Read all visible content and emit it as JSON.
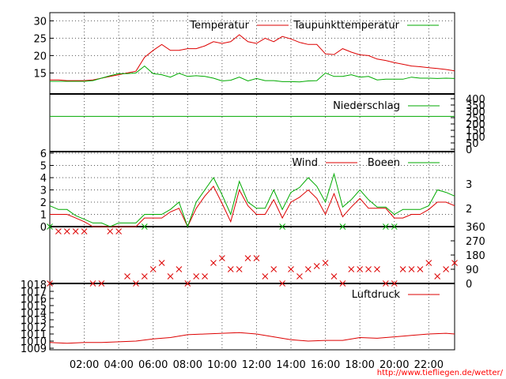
{
  "colors": {
    "red": "#dd0000",
    "green": "#00aa00",
    "grid": "#555555",
    "frame": "#000000"
  },
  "credit": "http://www.tiefliegen.de/wetter/",
  "chart_data": [
    {
      "type": "line",
      "name": "temperature-panel",
      "ylim": [
        11,
        31
      ],
      "yticks": [
        "15",
        "20",
        "25",
        "30"
      ],
      "ytick_values": [
        15,
        20,
        25,
        30
      ],
      "legend": [
        "Temperatur",
        "Taupunkttemperatur"
      ],
      "x": [
        0,
        0.5,
        1,
        1.5,
        2,
        2.5,
        3,
        3.5,
        4,
        4.5,
        5,
        5.5,
        6,
        6.5,
        7,
        7.5,
        8,
        8.5,
        9,
        9.5,
        10,
        10.5,
        11,
        11.5,
        12,
        12.5,
        13,
        13.5,
        14,
        14.5,
        15,
        15.5,
        16,
        16.5,
        17,
        17.5,
        18,
        18.5,
        19,
        19.5,
        20,
        20.5,
        21,
        21.5,
        22,
        22.5,
        23,
        23.5
      ],
      "series": [
        {
          "name": "Temperatur",
          "color": "red",
          "values": [
            13,
            13,
            12.8,
            12.8,
            12.8,
            13,
            13.5,
            14,
            14.5,
            15,
            15.5,
            19.5,
            21.5,
            23.2,
            21.5,
            21.5,
            22,
            22,
            22.8,
            24,
            23.5,
            24,
            26,
            24,
            23.5,
            25,
            24,
            25.5,
            24.8,
            23.8,
            23.2,
            23.2,
            20.5,
            20.3,
            22,
            21,
            20.2,
            20,
            19,
            18.6,
            18,
            17.5,
            17,
            16.8,
            16.5,
            16.3,
            16,
            15.6
          ]
        },
        {
          "name": "Taupunkttemperatur",
          "color": "green",
          "values": [
            12.6,
            12.6,
            12.6,
            12.6,
            12.6,
            12.8,
            13.5,
            14.2,
            14.8,
            14.8,
            15,
            17,
            14.8,
            14.5,
            13.8,
            14.9,
            14,
            14.2,
            14,
            13.5,
            12.7,
            12.9,
            13.8,
            12.7,
            13.4,
            12.8,
            12.8,
            12.5,
            12.5,
            12.4,
            12.7,
            12.8,
            15,
            14,
            14,
            14.5,
            13.8,
            14,
            13,
            13.2,
            13.2,
            13.2,
            13.8,
            13.5,
            13.5,
            13.4,
            13.5,
            13.4
          ]
        }
      ]
    },
    {
      "type": "line",
      "name": "precipitation-panel",
      "ylim": [
        0,
        400
      ],
      "yticks_right": [
        "400",
        "350",
        "300",
        "250",
        "200",
        "150",
        "100",
        "50",
        "0"
      ],
      "ytick_values": [
        400,
        350,
        300,
        250,
        200,
        150,
        100,
        50,
        0
      ],
      "legend": [
        "Niederschlag"
      ],
      "series": [
        {
          "name": "Niederschlag",
          "color": "green",
          "values": [
            260,
            260
          ]
        }
      ]
    },
    {
      "type": "line",
      "name": "wind-panel",
      "ylim": [
        0,
        6
      ],
      "yticks": [
        "0",
        "1",
        "2",
        "3",
        "4",
        "5",
        "6"
      ],
      "ytick_values": [
        0,
        1,
        2,
        3,
        4,
        5,
        6
      ],
      "yticks_right": [
        "2",
        "3"
      ],
      "ytick_right_values": [
        1.5,
        3.5
      ],
      "legend": [
        "Wind",
        "Boeen"
      ],
      "x": [
        0,
        0.5,
        1,
        1.5,
        2,
        2.5,
        3,
        3.5,
        4,
        4.5,
        5,
        5.5,
        6,
        6.5,
        7,
        7.5,
        8,
        8.5,
        9,
        9.5,
        10,
        10.5,
        11,
        11.5,
        12,
        12.5,
        13,
        13.5,
        14,
        14.5,
        15,
        15.5,
        16,
        16.5,
        17,
        17.5,
        18,
        18.5,
        19,
        19.5,
        20,
        20.5,
        21,
        21.5,
        22,
        22.5,
        23,
        23.5
      ],
      "series": [
        {
          "name": "Wind",
          "color": "red",
          "values": [
            1,
            1,
            1,
            0.7,
            0.4,
            0,
            0,
            0,
            0,
            0,
            0,
            0.7,
            0.7,
            0.7,
            1.2,
            1.5,
            0,
            1.5,
            2.5,
            3.3,
            1.9,
            0.4,
            3,
            1.7,
            1,
            1,
            2.2,
            0.7,
            2,
            2.4,
            3,
            2.3,
            1,
            2.7,
            0.8,
            1.6,
            2.3,
            1.5,
            1.5,
            1.5,
            0.7,
            0.7,
            1,
            1,
            1.4,
            2,
            2,
            1.7
          ]
        },
        {
          "name": "Boeen",
          "color": "green",
          "values": [
            1.7,
            1.4,
            1.4,
            0.9,
            0.6,
            0.3,
            0.3,
            0,
            0.3,
            0.3,
            0.3,
            1,
            1,
            1,
            1.4,
            2,
            0,
            2,
            3,
            4,
            2.6,
            1,
            3.7,
            2,
            1.5,
            1.5,
            3,
            1.4,
            2.8,
            3.2,
            4,
            3.3,
            2,
            4.3,
            1.6,
            2.2,
            3,
            2.2,
            1.6,
            1.6,
            1,
            1.4,
            1.4,
            1.4,
            1.7,
            3,
            2.8,
            2.5
          ]
        }
      ]
    },
    {
      "type": "scatter",
      "name": "wind-direction-panel",
      "ylim": [
        0,
        360
      ],
      "yticks_right": [
        "360",
        "270",
        "180",
        "90",
        "0"
      ],
      "ytick_values": [
        360,
        270,
        180,
        90,
        0
      ],
      "marker": "x",
      "series": [
        {
          "name": "direction",
          "color": "red",
          "x": [
            0,
            0.5,
            1,
            1.5,
            2,
            2.5,
            3,
            3.5,
            4,
            4.5,
            5,
            5.5,
            6,
            6.5,
            7,
            7.5,
            8,
            8.5,
            9,
            9.5,
            10,
            10.5,
            11,
            11.5,
            12,
            12.5,
            13,
            13.5,
            14,
            14.5,
            15,
            15.5,
            16,
            16.5,
            17,
            17.5,
            18,
            18.5,
            19,
            19.5,
            20,
            20.5,
            21,
            21.5,
            22,
            22.5,
            23,
            23.5
          ],
          "values": [
            0,
            330,
            330,
            330,
            330,
            0,
            0,
            330,
            330,
            45,
            0,
            45,
            90,
            130,
            45,
            90,
            0,
            45,
            45,
            130,
            160,
            90,
            90,
            160,
            160,
            45,
            90,
            0,
            90,
            45,
            90,
            110,
            130,
            45,
            0,
            90,
            90,
            90,
            90,
            0,
            0,
            90,
            90,
            90,
            130,
            45,
            90,
            130
          ]
        }
      ]
    },
    {
      "type": "line",
      "name": "pressure-panel",
      "ylim": [
        1009,
        1018
      ],
      "yticks": [
        "1009",
        "1010",
        "1011",
        "1012",
        "1013",
        "1014",
        "1015",
        "1016",
        "1017",
        "1018"
      ],
      "ytick_values": [
        1009,
        1010,
        1011,
        1012,
        1013,
        1014,
        1015,
        1016,
        1017,
        1018
      ],
      "legend": [
        "Luftdruck"
      ],
      "x": [
        0,
        1,
        2,
        3,
        4,
        5,
        6,
        7,
        8,
        9,
        10,
        11,
        12,
        13,
        14,
        15,
        16,
        17,
        18,
        19,
        20,
        21,
        22,
        23,
        23.5
      ],
      "series": [
        {
          "name": "Luftdruck",
          "color": "red",
          "values": [
            1009.8,
            1009.7,
            1009.8,
            1009.8,
            1009.9,
            1010,
            1010.3,
            1010.5,
            1010.9,
            1011,
            1011.1,
            1011.2,
            1011,
            1010.6,
            1010.2,
            1010,
            1010.1,
            1010.1,
            1010.5,
            1010.4,
            1010.6,
            1010.8,
            1011,
            1011.1,
            1011
          ]
        }
      ]
    }
  ],
  "xaxis": {
    "ticks": [
      "02:00",
      "04:00",
      "06:00",
      "08:00",
      "10:00",
      "12:00",
      "14:00",
      "16:00",
      "18:00",
      "20:00",
      "22:00"
    ],
    "tick_values": [
      2,
      4,
      6,
      8,
      10,
      12,
      14,
      16,
      18,
      20,
      22
    ],
    "range": [
      0,
      23.5
    ]
  }
}
